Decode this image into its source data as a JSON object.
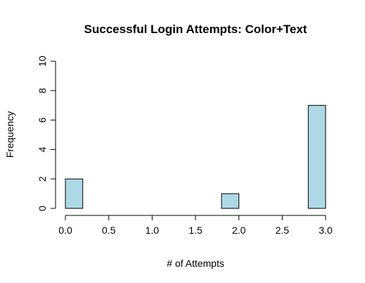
{
  "chart_data": {
    "type": "bar",
    "title": "Successful Login Attempts: Color+Text",
    "xlabel": "# of Attempts",
    "ylabel": "Frequency",
    "bar_color": "#add8e6",
    "bins": [
      {
        "start": 0.0,
        "end": 0.2,
        "value": 2
      },
      {
        "start": 0.2,
        "end": 0.4,
        "value": 0
      },
      {
        "start": 0.4,
        "end": 0.6,
        "value": 0
      },
      {
        "start": 0.6,
        "end": 0.8,
        "value": 0
      },
      {
        "start": 0.8,
        "end": 1.0,
        "value": 0
      },
      {
        "start": 1.0,
        "end": 1.2,
        "value": 0
      },
      {
        "start": 1.2,
        "end": 1.4,
        "value": 0
      },
      {
        "start": 1.4,
        "end": 1.6,
        "value": 0
      },
      {
        "start": 1.6,
        "end": 1.8,
        "value": 0
      },
      {
        "start": 1.8,
        "end": 2.0,
        "value": 1
      },
      {
        "start": 2.0,
        "end": 2.2,
        "value": 0
      },
      {
        "start": 2.2,
        "end": 2.4,
        "value": 0
      },
      {
        "start": 2.4,
        "end": 2.6,
        "value": 0
      },
      {
        "start": 2.6,
        "end": 2.8,
        "value": 0
      },
      {
        "start": 2.8,
        "end": 3.0,
        "value": 7
      }
    ],
    "xlim": [
      0,
      3
    ],
    "ylim": [
      0,
      10
    ],
    "x_ticks": [
      {
        "value": 0.0,
        "label": "0.0"
      },
      {
        "value": 0.5,
        "label": "0.5"
      },
      {
        "value": 1.0,
        "label": "1.0"
      },
      {
        "value": 1.5,
        "label": "1.5"
      },
      {
        "value": 2.0,
        "label": "2.0"
      },
      {
        "value": 2.5,
        "label": "2.5"
      },
      {
        "value": 3.0,
        "label": "3.0"
      }
    ],
    "y_ticks": [
      {
        "value": 0,
        "label": "0"
      },
      {
        "value": 2,
        "label": "2"
      },
      {
        "value": 4,
        "label": "4"
      },
      {
        "value": 6,
        "label": "6"
      },
      {
        "value": 8,
        "label": "8"
      },
      {
        "value": 10,
        "label": "10"
      }
    ],
    "grid": false,
    "legend": false
  }
}
